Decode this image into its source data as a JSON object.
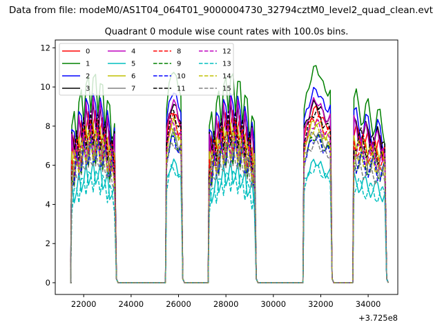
{
  "suptitle": "Data from file: modeM0/AS1T04_064T01_9000004730_32794cztM0_level2_quad_clean.evt",
  "chart_data": {
    "type": "line",
    "title": "Quadrant 0 module wise count rates with 100.0s bins.",
    "xlabel": "",
    "ylabel": "",
    "offset_label": "+3.725e8",
    "xlim": [
      20800,
      35250
    ],
    "ylim": [
      -0.6,
      12.4
    ],
    "x_ticks": [
      22000,
      24000,
      26000,
      28000,
      30000,
      32000,
      34000
    ],
    "x_tick_labels": [
      "22000",
      "24000",
      "26000",
      "28000",
      "30000",
      "32000",
      "34000"
    ],
    "y_ticks": [
      0,
      2,
      4,
      6,
      8,
      10,
      12
    ],
    "y_tick_labels": [
      "0",
      "2",
      "4",
      "6",
      "8",
      "10",
      "12"
    ],
    "grid": false,
    "legend_position": "top-left",
    "legend_columns": 4,
    "segments": [
      {
        "start": 21500,
        "end": 23300,
        "pattern": "jagged"
      },
      {
        "start": 25500,
        "end": 26100,
        "pattern": "bump"
      },
      {
        "start": 27300,
        "end": 29200,
        "pattern": "jagged"
      },
      {
        "start": 31300,
        "end": 32400,
        "pattern": "bump"
      },
      {
        "start": 33400,
        "end": 34700,
        "pattern": "wavy"
      }
    ],
    "bin_width": 100,
    "series": [
      {
        "name": "0",
        "color": "#ff0000",
        "dash": "solid",
        "base": 7.4,
        "hi": 9.0
      },
      {
        "name": "1",
        "color": "#008000",
        "dash": "solid",
        "base": 8.8,
        "hi": 11.2
      },
      {
        "name": "2",
        "color": "#0000ff",
        "dash": "solid",
        "base": 8.2,
        "hi": 10.0
      },
      {
        "name": "3",
        "color": "#000000",
        "dash": "solid",
        "base": 7.8,
        "hi": 9.3
      },
      {
        "name": "4",
        "color": "#bf00bf",
        "dash": "solid",
        "base": 7.6,
        "hi": 9.5
      },
      {
        "name": "5",
        "color": "#00bfbf",
        "dash": "solid",
        "base": 5.1,
        "hi": 6.3
      },
      {
        "name": "6",
        "color": "#bfbf00",
        "dash": "solid",
        "base": 6.9,
        "hi": 8.4
      },
      {
        "name": "7",
        "color": "#808080",
        "dash": "solid",
        "base": 6.5,
        "hi": 7.8
      },
      {
        "name": "8",
        "color": "#ff0000",
        "dash": "dashed",
        "base": 7.1,
        "hi": 8.6
      },
      {
        "name": "9",
        "color": "#008000",
        "dash": "dashed",
        "base": 6.3,
        "hi": 7.6
      },
      {
        "name": "10",
        "color": "#0000ff",
        "dash": "dashed",
        "base": 6.2,
        "hi": 7.5
      },
      {
        "name": "11",
        "color": "#000000",
        "dash": "dashed",
        "base": 7.3,
        "hi": 8.9
      },
      {
        "name": "12",
        "color": "#bf00bf",
        "dash": "dashed",
        "base": 6.9,
        "hi": 8.3
      },
      {
        "name": "13",
        "color": "#00bfbf",
        "dash": "dashed",
        "base": 4.9,
        "hi": 6.0
      },
      {
        "name": "14",
        "color": "#bfbf00",
        "dash": "dashed",
        "base": 6.7,
        "hi": 8.0
      },
      {
        "name": "15",
        "color": "#808080",
        "dash": "dashed",
        "base": 6.0,
        "hi": 7.3
      }
    ]
  }
}
